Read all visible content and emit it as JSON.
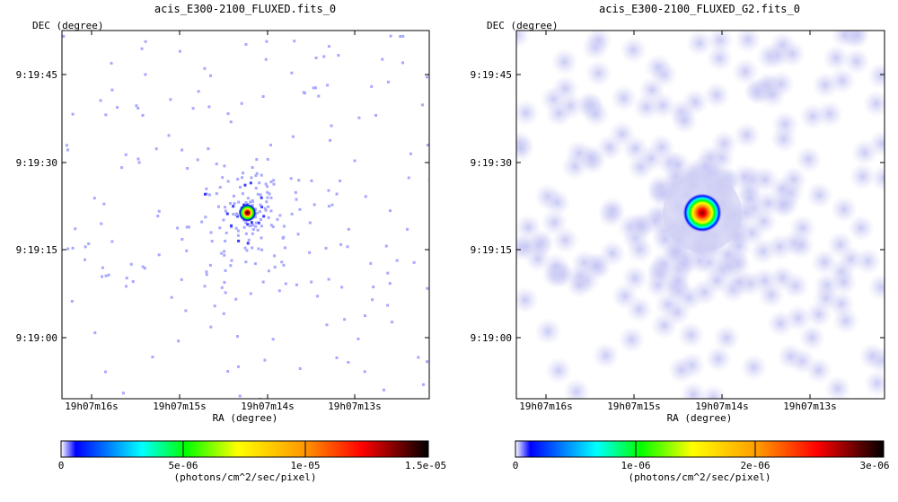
{
  "chart_data": [
    {
      "type": "heatmap",
      "title": "acis_E300-2100_FLUXED.fits_0",
      "xlabel": "RA (degree)",
      "ylabel": "DEC (degree)",
      "x_ticks": [
        "19h07m16s",
        "19h07m15s",
        "19h07m14s",
        "19h07m13s"
      ],
      "y_ticks": [
        "9:19:45",
        "9:19:30",
        "9:19:15",
        "9:19:00"
      ],
      "colorbar": {
        "label": "(photons/cm^2/sec/pixel)",
        "ticks": [
          "0",
          "5e-06",
          "1e-05",
          "1.5e-05"
        ],
        "tick_values": [
          0,
          5e-06,
          1e-05,
          1.5e-05
        ],
        "range": [
          0,
          1.5e-05
        ],
        "colormap": "rainbow-to-black"
      },
      "source": {
        "ra": "19h07m14.2s",
        "dec": "9:19:21",
        "peak": 1.5e-05,
        "smoothing": "none"
      }
    },
    {
      "type": "heatmap",
      "title": "acis_E300-2100_FLUXED_G2.fits_0",
      "xlabel": "RA (degree)",
      "ylabel": "DEC (degree)",
      "x_ticks": [
        "19h07m16s",
        "19h07m15s",
        "19h07m14s",
        "19h07m13s"
      ],
      "y_ticks": [
        "9:19:45",
        "9:19:30",
        "9:19:15",
        "9:19:00"
      ],
      "colorbar": {
        "label": "(photons/cm^2/sec/pixel)",
        "ticks": [
          "0",
          "1e-06",
          "2e-06",
          "3e-06"
        ],
        "tick_values": [
          0,
          1e-06,
          2e-06,
          3e-06
        ],
        "range": [
          0,
          3e-06
        ],
        "colormap": "rainbow-to-black"
      },
      "source": {
        "ra": "19h07m14.2s",
        "dec": "9:19:21",
        "peak": 3e-06,
        "smoothing": "gaussian"
      }
    }
  ],
  "colors": {
    "faint_pixel": "#a8a8ff",
    "halo": "#dcdcf8",
    "colormap_stops": [
      "#ffffff",
      "#0000ff",
      "#00ffff",
      "#00ff00",
      "#ffff00",
      "#ff8800",
      "#ff0000",
      "#000000"
    ]
  }
}
